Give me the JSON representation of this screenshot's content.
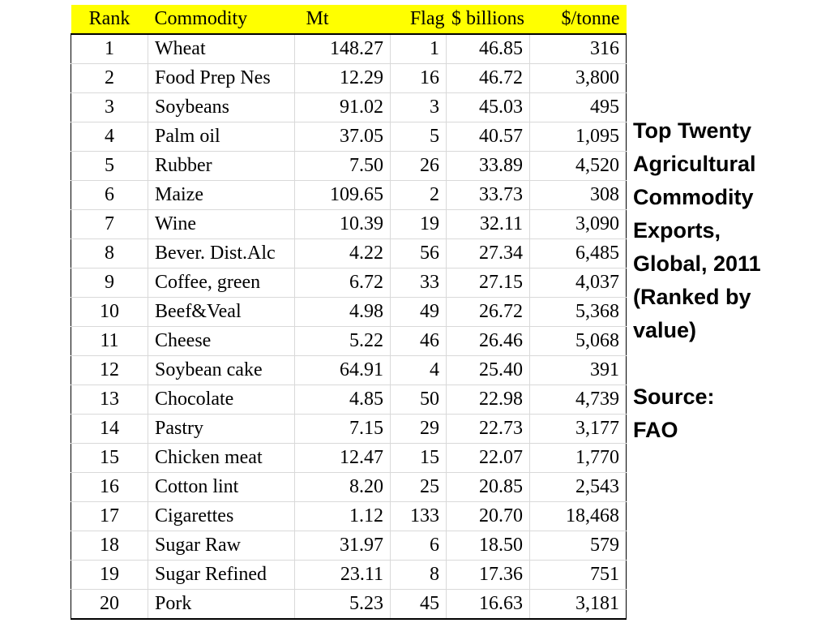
{
  "side": {
    "title": "Top Twenty\nAgricultural\nCommodity\nExports,\nGlobal, 2011\n(Ranked by\nvalue)",
    "source": "Source:\nFAO"
  },
  "colors": {
    "header_bg": "#ffff00",
    "grid": "#d9d9d9",
    "border": "#000000"
  },
  "chart_data": {
    "type": "table",
    "columns": [
      "Rank",
      "Commodity",
      "Mt",
      "Flag",
      "$ billions",
      "$/tonne"
    ],
    "rows": [
      [
        "1",
        "Wheat",
        "148.27",
        "1",
        "46.85",
        "316"
      ],
      [
        "2",
        "Food Prep Nes",
        "12.29",
        "16",
        "46.72",
        "3,800"
      ],
      [
        "3",
        "Soybeans",
        "91.02",
        "3",
        "45.03",
        "495"
      ],
      [
        "4",
        "Palm oil",
        "37.05",
        "5",
        "40.57",
        "1,095"
      ],
      [
        "5",
        "Rubber",
        "7.50",
        "26",
        "33.89",
        "4,520"
      ],
      [
        "6",
        "Maize",
        "109.65",
        "2",
        "33.73",
        "308"
      ],
      [
        "7",
        "Wine",
        "10.39",
        "19",
        "32.11",
        "3,090"
      ],
      [
        "8",
        "Bever. Dist.Alc",
        "4.22",
        "56",
        "27.34",
        "6,485"
      ],
      [
        "9",
        "Coffee, green",
        "6.72",
        "33",
        "27.15",
        "4,037"
      ],
      [
        "10",
        "Beef&Veal",
        "4.98",
        "49",
        "26.72",
        "5,368"
      ],
      [
        "11",
        "Cheese",
        "5.22",
        "46",
        "26.46",
        "5,068"
      ],
      [
        "12",
        "Soybean cake",
        "64.91",
        "4",
        "25.40",
        "391"
      ],
      [
        "13",
        "Chocolate",
        "4.85",
        "50",
        "22.98",
        "4,739"
      ],
      [
        "14",
        "Pastry",
        "7.15",
        "29",
        "22.73",
        "3,177"
      ],
      [
        "15",
        "Chicken meat",
        "12.47",
        "15",
        "22.07",
        "1,770"
      ],
      [
        "16",
        "Cotton lint",
        "8.20",
        "25",
        "20.85",
        "2,543"
      ],
      [
        "17",
        "Cigarettes",
        "1.12",
        "133",
        "20.70",
        "18,468"
      ],
      [
        "18",
        "Sugar Raw",
        "31.97",
        "6",
        "18.50",
        "579"
      ],
      [
        "19",
        "Sugar Refined",
        "23.11",
        "8",
        "17.36",
        "751"
      ],
      [
        "20",
        "Pork",
        "5.23",
        "45",
        "16.63",
        "3,181"
      ]
    ]
  }
}
